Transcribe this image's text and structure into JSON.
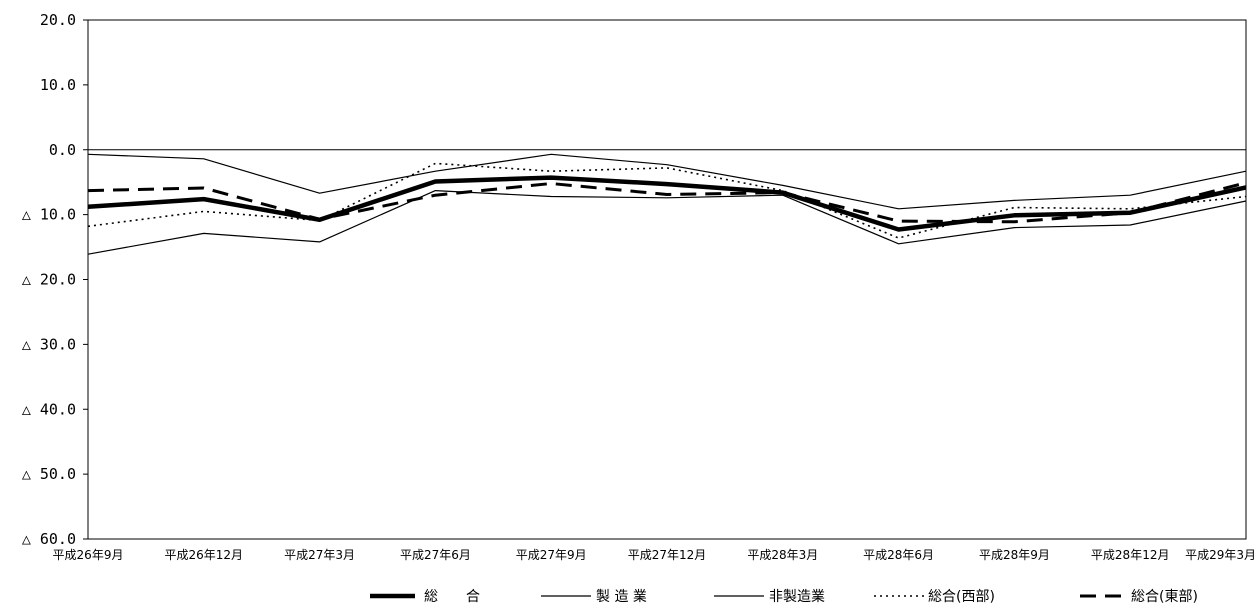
{
  "chart_data": {
    "type": "line",
    "title": "",
    "xlabel": "",
    "ylabel": "",
    "categories": [
      "平成26年9月",
      "平成26年12月",
      "平成27年3月",
      "平成27年6月",
      "平成27年9月",
      "平成27年12月",
      "平成28年3月",
      "平成28年6月",
      "平成28年9月",
      "平成28年12月",
      "平成29年3月"
    ],
    "ylim": [
      -60,
      20
    ],
    "yticks": [
      20,
      10,
      0,
      -10,
      -20,
      -30,
      -40,
      -50,
      -60
    ],
    "ytick_labels": [
      "20.0",
      "10.0",
      "0.0",
      "△ 10.0",
      "△ 20.0",
      "△ 30.0",
      "△ 40.0",
      "△ 50.0",
      "△ 60.0"
    ],
    "grid": false,
    "zero_line": true,
    "legend_position": "bottom",
    "series": [
      {
        "name": "総　　合",
        "style": "thick-solid",
        "color": "#000000",
        "values": [
          -8.8,
          -7.6,
          -10.8,
          -4.9,
          -4.3,
          -5.3,
          -6.6,
          -12.3,
          -10.1,
          -9.7,
          -5.8
        ]
      },
      {
        "name": "製 造 業",
        "style": "thin-solid",
        "color": "#000000",
        "values": [
          -16.1,
          -12.9,
          -14.2,
          -6.3,
          -7.2,
          -7.4,
          -7.0,
          -14.5,
          -12.0,
          -11.6,
          -7.9
        ]
      },
      {
        "name": "非製造業",
        "style": "thin-solid",
        "color": "#000000",
        "values": [
          -0.7,
          -1.4,
          -6.7,
          -3.3,
          -0.7,
          -2.3,
          -5.5,
          -9.1,
          -7.8,
          -7.0,
          -3.3
        ]
      },
      {
        "name": "総合(西部)",
        "style": "dotted",
        "color": "#000000",
        "values": [
          -11.8,
          -9.5,
          -10.9,
          -2.1,
          -3.3,
          -2.8,
          -6.3,
          -13.6,
          -8.9,
          -9.1,
          -7.2
        ]
      },
      {
        "name": "総合(東部)",
        "style": "dashed",
        "color": "#000000",
        "values": [
          -6.3,
          -5.9,
          -10.7,
          -7.0,
          -5.2,
          -6.9,
          -6.6,
          -11.0,
          -11.1,
          -9.7,
          -5.1
        ]
      }
    ]
  }
}
